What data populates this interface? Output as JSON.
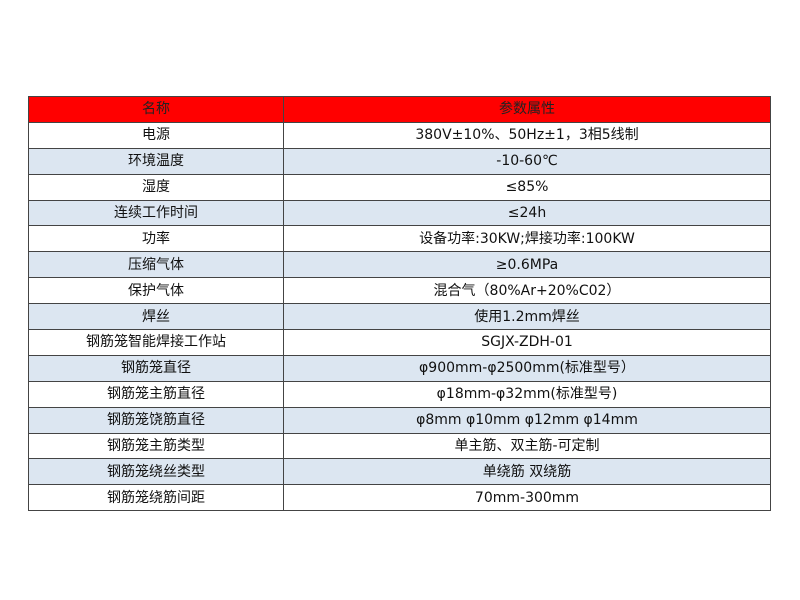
{
  "colors": {
    "header": "#ff0000",
    "alt_row": "#dce6f1"
  },
  "table": {
    "headers": [
      "名称",
      "参数属性"
    ],
    "rows": [
      [
        "电源",
        "380V±10%、50Hz±1，3相5线制"
      ],
      [
        "环境温度",
        "-10-60℃"
      ],
      [
        "湿度",
        "≤85%"
      ],
      [
        "连续工作时间",
        "≤24h"
      ],
      [
        "功率",
        "设备功率:30KW;焊接功率:100KW"
      ],
      [
        "压缩气体",
        "≥0.6MPa"
      ],
      [
        "保护气体",
        "混合气（80%Ar+20%C02）"
      ],
      [
        "焊丝",
        "使用1.2mm焊丝"
      ],
      [
        "钢筋笼智能焊接工作站",
        "SGJX-ZDH-01"
      ],
      [
        "钢筋笼直径",
        "φ900mm-φ2500mm(标准型号）"
      ],
      [
        "钢筋笼主筋直径",
        "φ18mm-φ32mm(标准型号)"
      ],
      [
        "钢筋笼饶筋直径",
        "φ8mm φ10mm φ12mm φ14mm"
      ],
      [
        "钢筋笼主筋类型",
        "单主筋、双主筋-可定制"
      ],
      [
        "钢筋笼绕丝类型",
        "单绕筋 双绕筋"
      ],
      [
        "钢筋笼绕筋间距",
        "70mm-300mm"
      ]
    ]
  }
}
